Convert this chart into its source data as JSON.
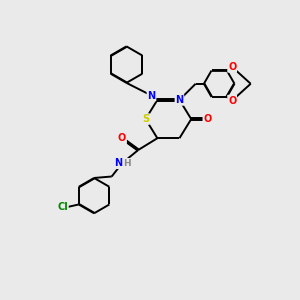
{
  "background_color": "#eaeaea",
  "bond_color": "#000000",
  "atom_colors": {
    "S": "#cccc00",
    "N": "#0000ff",
    "O": "#ff0000",
    "Cl": "#008800",
    "H": "#888888",
    "C": "#000000"
  },
  "figsize": [
    3.0,
    3.0
  ],
  "dpi": 100
}
